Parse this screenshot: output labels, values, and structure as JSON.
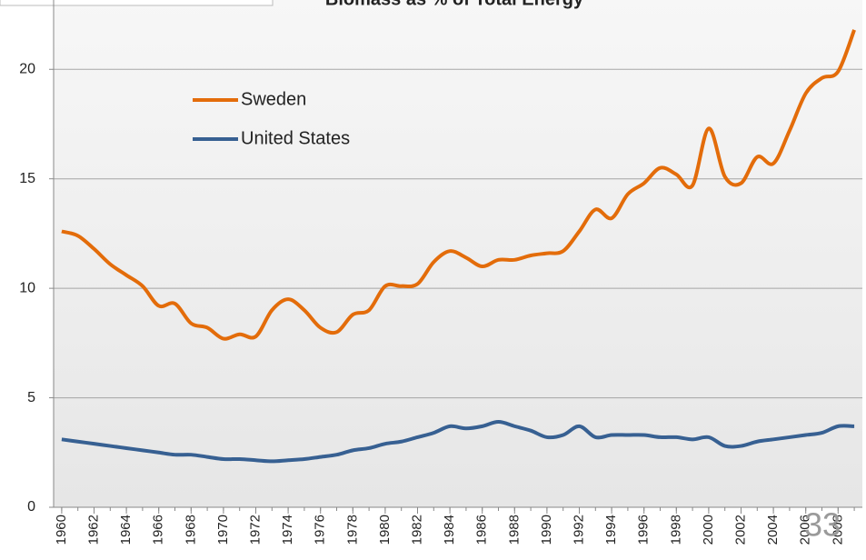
{
  "chart_data": {
    "type": "line",
    "title": "Biomass as % of Total Energy",
    "x": [
      1960,
      1961,
      1962,
      1963,
      1964,
      1965,
      1966,
      1967,
      1968,
      1969,
      1970,
      1971,
      1972,
      1973,
      1974,
      1975,
      1976,
      1977,
      1978,
      1979,
      1980,
      1981,
      1982,
      1983,
      1984,
      1985,
      1986,
      1987,
      1988,
      1989,
      1990,
      1991,
      1992,
      1993,
      1994,
      1995,
      1996,
      1997,
      1998,
      1999,
      2000,
      2001,
      2002,
      2003,
      2004,
      2005,
      2006,
      2007,
      2008,
      2009
    ],
    "series": [
      {
        "name": "Sweden",
        "color": "#e36c0a",
        "values": [
          12.6,
          12.4,
          11.8,
          11.1,
          10.6,
          10.1,
          9.2,
          9.3,
          8.4,
          8.2,
          7.7,
          7.9,
          7.8,
          9.0,
          9.5,
          9.0,
          8.2,
          8.0,
          8.8,
          9.0,
          10.1,
          10.1,
          10.2,
          11.2,
          11.7,
          11.4,
          11.0,
          11.3,
          11.3,
          11.5,
          11.6,
          11.7,
          12.6,
          13.6,
          13.2,
          14.3,
          14.8,
          15.5,
          15.2,
          14.7,
          17.3,
          15.1,
          14.8,
          16.0,
          15.7,
          17.2,
          18.9,
          19.6,
          19.9,
          21.8
        ]
      },
      {
        "name": "United States",
        "color": "#376092",
        "values": [
          3.1,
          3.0,
          2.9,
          2.8,
          2.7,
          2.6,
          2.5,
          2.4,
          2.4,
          2.3,
          2.2,
          2.2,
          2.15,
          2.1,
          2.15,
          2.2,
          2.3,
          2.4,
          2.6,
          2.7,
          2.9,
          3.0,
          3.2,
          3.4,
          3.7,
          3.6,
          3.7,
          3.9,
          3.7,
          3.5,
          3.2,
          3.3,
          3.7,
          3.2,
          3.3,
          3.3,
          3.3,
          3.2,
          3.2,
          3.1,
          3.2,
          2.8,
          2.8,
          3.0,
          3.1,
          3.2,
          3.3,
          3.4,
          3.7,
          3.7
        ]
      }
    ],
    "xlim": [
      1959.5,
      2009.5
    ],
    "xticks": [
      1960,
      1962,
      1964,
      1966,
      1968,
      1970,
      1972,
      1974,
      1976,
      1978,
      1980,
      1982,
      1984,
      1986,
      1988,
      1990,
      1992,
      1994,
      1996,
      1998,
      2000,
      2002,
      2004,
      2006,
      2008
    ],
    "ylim": [
      0,
      23
    ],
    "yticks": [
      0,
      5,
      10,
      15,
      20
    ],
    "grid": true,
    "legend": "upper-left"
  },
  "slide_number": "33"
}
